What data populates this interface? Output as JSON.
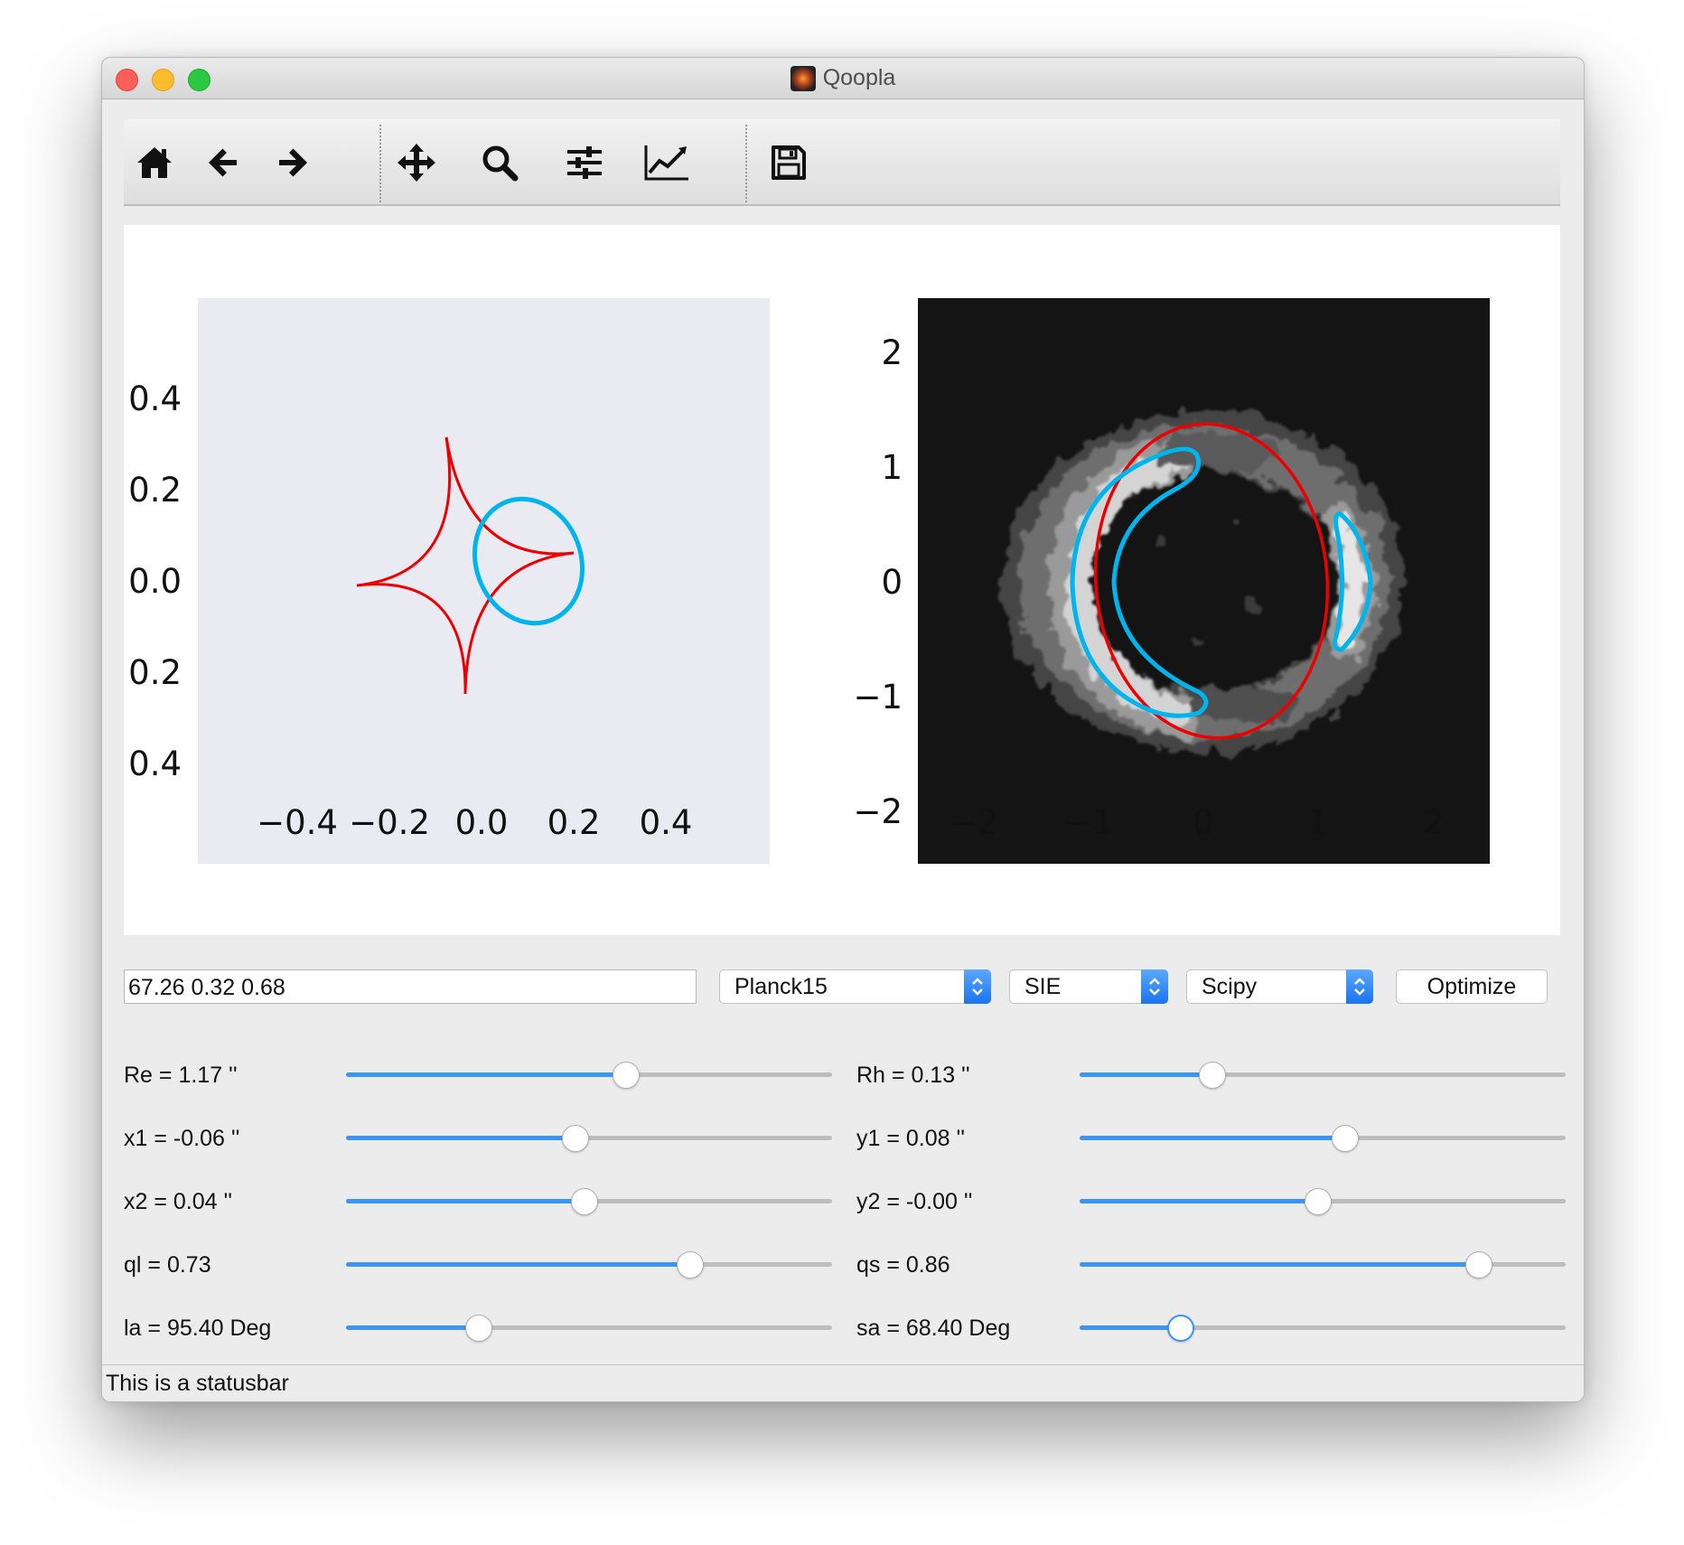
{
  "window": {
    "title": "Qoopla"
  },
  "toolbar": {
    "icons": [
      "home-icon",
      "back-arrow-icon",
      "forward-arrow-icon",
      "pan-move-icon",
      "zoom-icon",
      "configure-subplots-icon",
      "edit-axes-icon",
      "save-icon"
    ]
  },
  "chart_data": [
    {
      "type": "line",
      "xticks": [
        "−0.4",
        "−0.2",
        "0.0",
        "0.2",
        "0.4"
      ],
      "yticks": [
        "0.4",
        "0.2",
        "0.0",
        "0.2",
        "0.4"
      ],
      "xlim": [
        -0.62,
        0.62
      ],
      "ylim": [
        -0.62,
        0.62
      ],
      "background": "#eaeaf2",
      "series": [
        {
          "color": "#ee0000",
          "shape": "astroid caustic",
          "x": [
            0.21,
            -0.06,
            -0.3,
            -0.01,
            0.21
          ],
          "y": [
            0.06,
            0.32,
            0.0,
            -0.24,
            0.06
          ]
        },
        {
          "color": "#00b4ee",
          "shape": "ellipse source",
          "center": [
            0.11,
            -0.02
          ],
          "radii": [
            0.14,
            0.17
          ],
          "angle_deg": 68.4
        }
      ]
    },
    {
      "type": "heatmap",
      "xticks": [
        "−2",
        "−1",
        "0",
        "1",
        "2"
      ],
      "yticks": [
        "2",
        "1",
        "0",
        "−1",
        "−2"
      ],
      "xlim": [
        -2.5,
        2.5
      ],
      "ylim": [
        -2.5,
        2.5
      ],
      "background": "#141414",
      "series": [
        {
          "color": "#ee0000",
          "shape": "critical curve ellipse",
          "center": [
            -0.1,
            0.0
          ],
          "radii": [
            1.02,
            1.37
          ],
          "angle_deg": 5
        },
        {
          "color": "#00b4ee",
          "shape": "image arcs",
          "arcs": 2
        }
      ]
    }
  ],
  "controls": {
    "cosmology_value": "67.26 0.32 0.68",
    "cosmology_select": "Planck15",
    "model_select": "SIE",
    "optimizer_select": "Scipy",
    "optimize_label": "Optimize"
  },
  "params_left": [
    {
      "label": "Re = 1.17 ''",
      "value": 0.58
    },
    {
      "label": "x1 = -0.06 ''",
      "value": 0.47
    },
    {
      "label": "x2 = 0.04 ''",
      "value": 0.49
    },
    {
      "label": "ql = 0.73",
      "value": 0.72
    },
    {
      "label": "la = 95.40 Deg",
      "value": 0.26
    }
  ],
  "params_right": [
    {
      "label": "Rh = 0.13 ''",
      "value": 0.26
    },
    {
      "label": "y1 = 0.08 ''",
      "value": 0.55
    },
    {
      "label": "y2 = -0.00 ''",
      "value": 0.49
    },
    {
      "label": "qs = 0.86",
      "value": 0.84
    },
    {
      "label": "sa = 68.40 Deg",
      "value": 0.19
    }
  ],
  "statusbar": {
    "text": "This is a statusbar"
  }
}
